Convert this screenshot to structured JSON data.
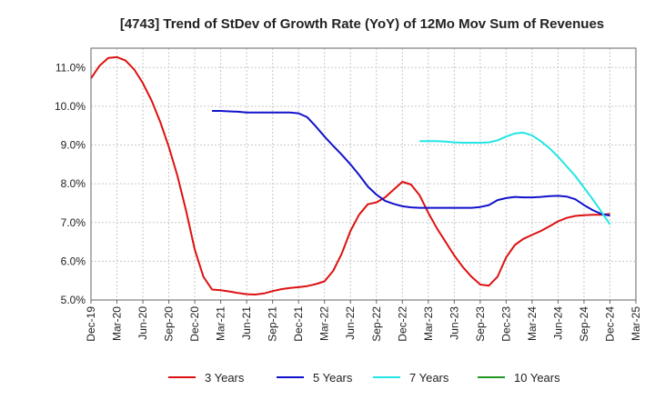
{
  "chart_data": {
    "type": "line",
    "title": "[4743]  Trend of StDev of Growth Rate (YoY) of 12Mo Mov Sum of Revenues",
    "xlabel": "",
    "ylabel": "",
    "ylim": [
      5.0,
      11.5
    ],
    "yticks": [
      "5.0%",
      "6.0%",
      "7.0%",
      "8.0%",
      "9.0%",
      "10.0%",
      "11.0%"
    ],
    "ytick_values": [
      5,
      6,
      7,
      8,
      9,
      10,
      11
    ],
    "xticks": [
      "Dec-19",
      "Mar-20",
      "Jun-20",
      "Sep-20",
      "Dec-20",
      "Mar-21",
      "Jun-21",
      "Sep-21",
      "Dec-21",
      "Mar-22",
      "Jun-22",
      "Sep-22",
      "Dec-22",
      "Mar-23",
      "Jun-23",
      "Sep-23",
      "Dec-23",
      "Mar-24",
      "Jun-24",
      "Sep-24",
      "Dec-24",
      "Mar-25"
    ],
    "x_start": "Dec-19",
    "x_months": 63,
    "grid": true,
    "legend_position": "bottom",
    "series": [
      {
        "name": "3 Years",
        "color": "#dd1111",
        "start_index": 0,
        "values": [
          10.72,
          11.05,
          11.25,
          11.27,
          11.18,
          10.95,
          10.6,
          10.15,
          9.6,
          8.95,
          8.2,
          7.3,
          6.3,
          5.6,
          5.27,
          5.25,
          5.22,
          5.18,
          5.15,
          5.14,
          5.17,
          5.23,
          5.28,
          5.31,
          5.33,
          5.36,
          5.41,
          5.48,
          5.75,
          6.2,
          6.78,
          7.2,
          7.47,
          7.52,
          7.65,
          7.85,
          8.05,
          7.98,
          7.7,
          7.25,
          6.85,
          6.5,
          6.15,
          5.85,
          5.6,
          5.4,
          5.37,
          5.6,
          6.1,
          6.42,
          6.58,
          6.68,
          6.78,
          6.9,
          7.03,
          7.12,
          7.17,
          7.19,
          7.2,
          7.2,
          7.22
        ]
      },
      {
        "name": "5 Years",
        "color": "#1111cc",
        "start_index": 14,
        "values": [
          9.88,
          9.88,
          9.87,
          9.86,
          9.84,
          9.84,
          9.84,
          9.84,
          9.84,
          9.84,
          9.82,
          9.72,
          9.48,
          9.22,
          8.98,
          8.75,
          8.5,
          8.23,
          7.93,
          7.72,
          7.56,
          7.48,
          7.42,
          7.39,
          7.38,
          7.38,
          7.38,
          7.38,
          7.38,
          7.38,
          7.38,
          7.4,
          7.45,
          7.58,
          7.63,
          7.66,
          7.65,
          7.65,
          7.66,
          7.68,
          7.69,
          7.67,
          7.6,
          7.45,
          7.32,
          7.22,
          7.18
        ]
      },
      {
        "name": "7 Years",
        "color": "#22e5e5",
        "start_index": 38,
        "values": [
          9.1,
          9.1,
          9.1,
          9.09,
          9.07,
          9.06,
          9.06,
          9.06,
          9.07,
          9.12,
          9.22,
          9.3,
          9.32,
          9.25,
          9.1,
          8.92,
          8.7,
          8.45,
          8.2,
          7.9,
          7.6,
          7.28,
          6.95
        ]
      },
      {
        "name": "10 Years",
        "color": "#229922",
        "start_index": 0,
        "values": []
      }
    ]
  }
}
